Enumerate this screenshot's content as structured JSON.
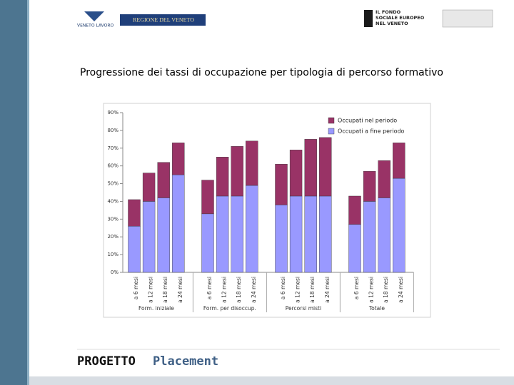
{
  "slide": {
    "logo_left": "VENETO LAVORO",
    "logo_region": "REGIONE DEL VENETO",
    "logo_fund": [
      "IL FONDO",
      "SOCIALE EUROPEO",
      "NEL VENETO"
    ],
    "footer_bold": "PROGETTO",
    "footer_rest": "Placement"
  },
  "chart_data": {
    "type": "stacked-bar",
    "title": "Progressione dei tassi di occupazione per tipologia di percorso formativo",
    "categories": [
      "a 6 mesi",
      "a 12 mesi",
      "a 18 mesi",
      "a 24 mesi",
      "a 6 mesi",
      "a 12 mesi",
      "a 18 mesi",
      "a 24 mesi",
      "a 6 mesi",
      "a 12 mesi",
      "a 18 mesi",
      "a 24 mesi",
      "a 6 mesi",
      "a 12 mesi",
      "a 18 mesi",
      "a 24 mesi"
    ],
    "groups": [
      "Form. iniziale",
      "Form. per disoccup.",
      "Percorsi misti",
      "Totale"
    ],
    "series": [
      {
        "name": "Occupati a fine periodo",
        "color": "#9999ff",
        "values": [
          26,
          40,
          42,
          55,
          33,
          43,
          43,
          49,
          38,
          43,
          43,
          43,
          27,
          40,
          42,
          53
        ]
      },
      {
        "name": "Occupati nel periodo",
        "color": "#993366",
        "values": [
          15,
          16,
          20,
          18,
          19,
          22,
          28,
          25,
          23,
          26,
          32,
          33,
          16,
          17,
          21,
          20
        ]
      }
    ],
    "ylim": [
      0,
      90
    ],
    "yticks": [
      {
        "value": 0,
        "label": "0%"
      },
      {
        "value": 10,
        "label": "10%"
      },
      {
        "value": 20,
        "label": "20%"
      },
      {
        "value": 30,
        "label": "30%"
      },
      {
        "value": 40,
        "label": "40%"
      },
      {
        "value": 50,
        "label": "50%"
      },
      {
        "value": 60,
        "label": "60%"
      },
      {
        "value": 70,
        "label": "70%"
      },
      {
        "value": 80,
        "label": "80%"
      },
      {
        "value": 90,
        "label": "90%"
      }
    ],
    "legend": "top-right"
  }
}
